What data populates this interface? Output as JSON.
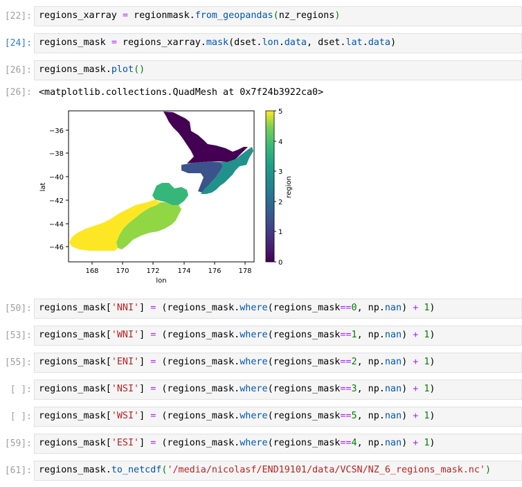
{
  "cells": [
    {
      "prompt": "[22]:",
      "active": false
    },
    {
      "prompt": "[24]:",
      "active": true
    },
    {
      "prompt": "[26]:",
      "active": false
    },
    {
      "prompt": "[50]:",
      "active": false
    },
    {
      "prompt": "[53]:",
      "active": false
    },
    {
      "prompt": "[55]:",
      "active": false
    },
    {
      "prompt": "[ ]:",
      "active": false
    },
    {
      "prompt": "[ ]:",
      "active": false
    },
    {
      "prompt": "[59]:",
      "active": false
    },
    {
      "prompt": "[61]:",
      "active": false
    }
  ],
  "code": {
    "c22": {
      "a": "regions_xarray ",
      "b": "=",
      "c": " regionmask.",
      "d": "from_geopandas",
      "e": "(",
      "f": "nz_regions",
      "g": ")"
    },
    "c24": {
      "a": "regions_mask ",
      "b": "=",
      "c": " regions_xarray.",
      "d": "mask",
      "e": "(dset.",
      "f": "lon",
      "g": ".",
      "h": "data",
      "i": ", dset.",
      "j": "lat",
      "k": ".",
      "l": "data",
      "m": ")"
    },
    "c26": {
      "a": "regions_mask.",
      "b": "plot",
      "c": "()"
    },
    "c61": {
      "a": "regions_mask.",
      "b": "to_netcdf",
      "c": "(",
      "d": "'/media/nicolasf/END19101/data/VCSN/NZ_6_regions_mask.nc'",
      "e": ")"
    }
  },
  "output_prompt": "[26]:",
  "output_text": "<matplotlib.collections.QuadMesh at 0x7f24b3922ca0>",
  "region_lines": [
    {
      "key": "'NNI'",
      "value": "0"
    },
    {
      "key": "'WNI'",
      "value": "1"
    },
    {
      "key": "'ENI'",
      "value": "2"
    },
    {
      "key": "'NSI'",
      "value": "3"
    },
    {
      "key": "'WSI'",
      "value": "5"
    },
    {
      "key": "'ESI'",
      "value": "4"
    }
  ],
  "line_tokens": {
    "lhs": "regions_mask[",
    "rbr": "]",
    "eq": " = ",
    "mid": "(regions_mask.",
    "where": "where",
    "arg": "(regions_mask",
    "deq": "==",
    "sep": ", np.",
    "nan": "nan",
    "close": ") ",
    "plus": "+",
    "sp": " ",
    "one": "1",
    "end": ")"
  },
  "chart_data": {
    "type": "heatmap",
    "xlabel": "lon",
    "ylabel": "lat",
    "xticks": [
      "168",
      "170",
      "172",
      "174",
      "176",
      "178"
    ],
    "yticks": [
      "−36",
      "−38",
      "−40",
      "−42",
      "−44",
      "−46"
    ],
    "xlim": [
      166.4,
      178.6
    ],
    "ylim": [
      -47.3,
      -34.3
    ],
    "colorbar_label": "region",
    "colorbar_ticks": [
      "0",
      "1",
      "2",
      "3",
      "4",
      "5"
    ],
    "colormap": "viridis",
    "region_colors": [
      "#440154",
      "#3b528b",
      "#21918c",
      "#35b779",
      "#90d743",
      "#fde725"
    ]
  }
}
